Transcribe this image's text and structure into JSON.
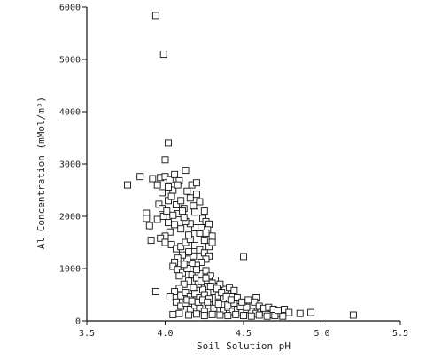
{
  "chart_data": {
    "type": "scatter",
    "xlabel": "Soil Solution pH",
    "ylabel": "Al Concentration (mMol/m³)",
    "xlim": [
      3.5,
      5.5
    ],
    "ylim": [
      0,
      6000
    ],
    "x_ticks": [
      {
        "value": 3.5,
        "label": "3.5"
      },
      {
        "value": 4.0,
        "label": "4.0"
      },
      {
        "value": 4.5,
        "label": "4.5"
      },
      {
        "value": 5.0,
        "label": "5.0"
      },
      {
        "value": 5.5,
        "label": "5.5"
      }
    ],
    "y_ticks": [
      {
        "value": 0,
        "label": "0"
      },
      {
        "value": 1000,
        "label": "1000"
      },
      {
        "value": 2000,
        "label": "2000"
      },
      {
        "value": 3000,
        "label": "3000"
      },
      {
        "value": 4000,
        "label": "4000"
      },
      {
        "value": 5000,
        "label": "5000"
      },
      {
        "value": 6000,
        "label": "6000"
      }
    ],
    "marker": "open-square",
    "points": [
      [
        3.94,
        5840
      ],
      [
        3.99,
        5100
      ],
      [
        4.02,
        3400
      ],
      [
        4.0,
        3080
      ],
      [
        3.76,
        2600
      ],
      [
        3.84,
        2760
      ],
      [
        3.92,
        2720
      ],
      [
        3.95,
        2600
      ],
      [
        3.97,
        2740
      ],
      [
        4.0,
        2760
      ],
      [
        4.03,
        2700
      ],
      [
        4.06,
        2800
      ],
      [
        4.13,
        2880
      ],
      [
        4.09,
        2680
      ],
      [
        4.17,
        2600
      ],
      [
        4.2,
        2640
      ],
      [
        3.88,
        2060
      ],
      [
        3.88,
        1960
      ],
      [
        3.9,
        1820
      ],
      [
        3.91,
        1540
      ],
      [
        3.95,
        1940
      ],
      [
        3.96,
        2230
      ],
      [
        3.98,
        2150
      ],
      [
        3.99,
        2000
      ],
      [
        4.01,
        2100
      ],
      [
        4.02,
        2300
      ],
      [
        4.05,
        2500
      ],
      [
        4.04,
        2380
      ],
      [
        4.07,
        2220
      ],
      [
        4.08,
        2050
      ],
      [
        4.1,
        2300
      ],
      [
        4.12,
        2150
      ],
      [
        4.14,
        2480
      ],
      [
        4.16,
        2350
      ],
      [
        4.18,
        2200
      ],
      [
        4.2,
        2420
      ],
      [
        4.22,
        2280
      ],
      [
        4.25,
        2100
      ],
      [
        4.24,
        1960
      ],
      [
        4.26,
        1900
      ],
      [
        4.28,
        1850
      ],
      [
        4.27,
        1740
      ],
      [
        4.3,
        1620
      ],
      [
        4.25,
        1540
      ],
      [
        4.22,
        1680
      ],
      [
        4.19,
        1780
      ],
      [
        4.16,
        1860
      ],
      [
        4.13,
        1900
      ],
      [
        4.1,
        1760
      ],
      [
        4.06,
        1840
      ],
      [
        4.03,
        1700
      ],
      [
        4.0,
        1620
      ],
      [
        3.97,
        1580
      ],
      [
        4.0,
        1500
      ],
      [
        4.04,
        1460
      ],
      [
        4.07,
        1380
      ],
      [
        4.1,
        1420
      ],
      [
        4.13,
        1500
      ],
      [
        4.16,
        1560
      ],
      [
        4.19,
        1440
      ],
      [
        4.22,
        1360
      ],
      [
        4.25,
        1300
      ],
      [
        4.28,
        1240
      ],
      [
        4.26,
        1180
      ],
      [
        4.23,
        1120
      ],
      [
        4.2,
        1060
      ],
      [
        4.17,
        1100
      ],
      [
        4.14,
        1180
      ],
      [
        4.11,
        1260
      ],
      [
        4.08,
        1200
      ],
      [
        4.06,
        1120
      ],
      [
        4.05,
        1040
      ],
      [
        4.08,
        980
      ],
      [
        4.11,
        920
      ],
      [
        4.14,
        1000
      ],
      [
        4.17,
        880
      ],
      [
        4.2,
        820
      ],
      [
        4.23,
        900
      ],
      [
        4.26,
        960
      ],
      [
        4.29,
        860
      ],
      [
        4.32,
        780
      ],
      [
        4.3,
        720
      ],
      [
        4.27,
        660
      ],
      [
        4.24,
        600
      ],
      [
        4.21,
        700
      ],
      [
        4.18,
        640
      ],
      [
        4.15,
        760
      ],
      [
        4.12,
        700
      ],
      [
        4.09,
        620
      ],
      [
        4.06,
        560
      ],
      [
        4.03,
        460
      ],
      [
        3.94,
        560
      ],
      [
        4.1,
        480
      ],
      [
        4.13,
        540
      ],
      [
        4.16,
        460
      ],
      [
        4.19,
        520
      ],
      [
        4.22,
        440
      ],
      [
        4.25,
        500
      ],
      [
        4.28,
        420
      ],
      [
        4.31,
        560
      ],
      [
        4.34,
        480
      ],
      [
        4.37,
        420
      ],
      [
        4.4,
        520
      ],
      [
        4.43,
        460
      ],
      [
        4.46,
        380
      ],
      [
        4.5,
        340
      ],
      [
        4.54,
        320
      ],
      [
        4.58,
        440
      ],
      [
        4.38,
        600
      ],
      [
        4.41,
        640
      ],
      [
        4.35,
        700
      ],
      [
        4.44,
        580
      ],
      [
        4.07,
        360
      ],
      [
        4.1,
        280
      ],
      [
        4.13,
        340
      ],
      [
        4.16,
        220
      ],
      [
        4.19,
        300
      ],
      [
        4.22,
        240
      ],
      [
        4.25,
        180
      ],
      [
        4.28,
        300
      ],
      [
        4.31,
        240
      ],
      [
        4.34,
        320
      ],
      [
        4.37,
        200
      ],
      [
        4.4,
        260
      ],
      [
        4.43,
        180
      ],
      [
        4.46,
        220
      ],
      [
        4.49,
        160
      ],
      [
        4.52,
        220
      ],
      [
        4.55,
        180
      ],
      [
        4.58,
        140
      ],
      [
        4.61,
        200
      ],
      [
        4.64,
        160
      ],
      [
        4.67,
        120
      ],
      [
        4.7,
        180
      ],
      [
        4.73,
        140
      ],
      [
        4.76,
        220
      ],
      [
        4.79,
        160
      ],
      [
        4.86,
        140
      ],
      [
        4.93,
        160
      ],
      [
        5.2,
        110
      ],
      [
        4.05,
        120
      ],
      [
        4.09,
        140
      ],
      [
        4.15,
        110
      ],
      [
        4.2,
        130
      ],
      [
        4.25,
        100
      ],
      [
        4.3,
        120
      ],
      [
        4.35,
        110
      ],
      [
        4.4,
        100
      ],
      [
        4.45,
        120
      ],
      [
        4.5,
        100
      ],
      [
        4.55,
        90
      ],
      [
        4.6,
        110
      ],
      [
        4.65,
        90
      ],
      [
        4.7,
        100
      ],
      [
        4.75,
        90
      ],
      [
        4.4,
        300
      ],
      [
        4.44,
        340
      ],
      [
        4.48,
        270
      ],
      [
        4.52,
        260
      ],
      [
        4.56,
        300
      ],
      [
        4.5,
        1230
      ],
      [
        4.28,
        1420
      ],
      [
        4.3,
        1500
      ],
      [
        4.15,
        1640
      ],
      [
        4.12,
        1980
      ],
      [
        4.05,
        2020
      ],
      [
        4.02,
        1880
      ],
      [
        3.98,
        2450
      ],
      [
        4.02,
        2560
      ],
      [
        4.08,
        2600
      ],
      [
        4.11,
        2100
      ],
      [
        4.19,
        2080
      ],
      [
        4.23,
        1780
      ],
      [
        4.26,
        1680
      ],
      [
        4.18,
        1240
      ],
      [
        4.15,
        1320
      ],
      [
        4.12,
        1080
      ],
      [
        4.09,
        860
      ],
      [
        4.2,
        980
      ],
      [
        4.23,
        760
      ],
      [
        4.26,
        820
      ],
      [
        4.29,
        660
      ],
      [
        4.33,
        620
      ],
      [
        4.36,
        540
      ],
      [
        4.39,
        460
      ],
      [
        4.42,
        400
      ],
      [
        4.46,
        440
      ],
      [
        4.49,
        360
      ],
      [
        4.53,
        400
      ],
      [
        4.57,
        360
      ],
      [
        4.6,
        280
      ],
      [
        4.63,
        240
      ],
      [
        4.66,
        260
      ],
      [
        4.69,
        220
      ],
      [
        4.72,
        200
      ],
      [
        4.14,
        400
      ],
      [
        4.17,
        380
      ],
      [
        4.21,
        360
      ],
      [
        4.24,
        400
      ],
      [
        4.27,
        360
      ]
    ]
  }
}
